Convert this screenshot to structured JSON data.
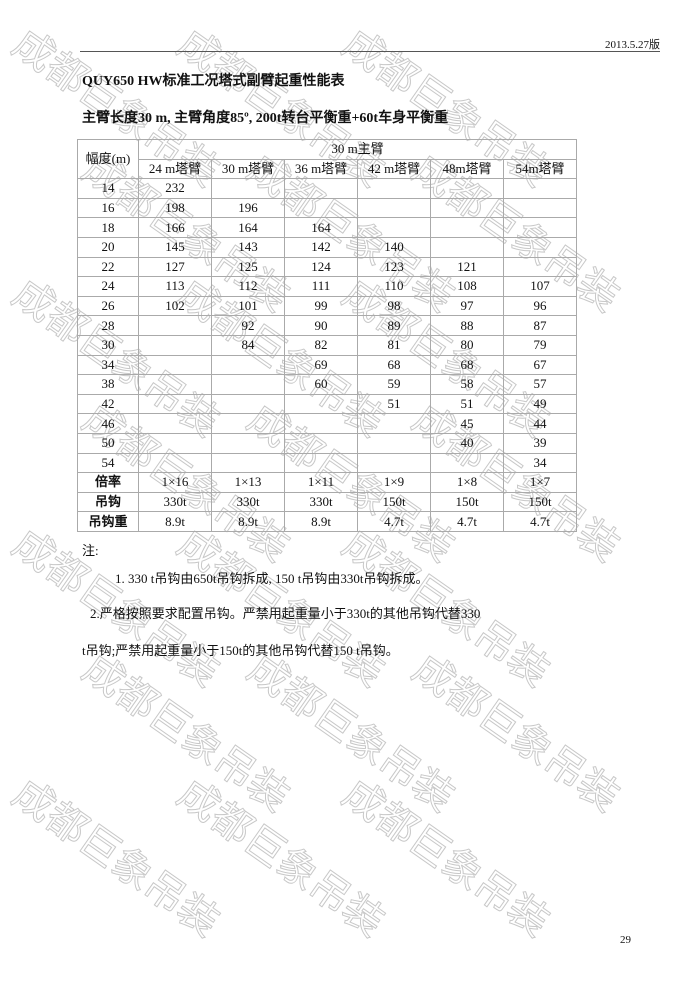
{
  "header": {
    "version_date": "2013.5.27版"
  },
  "title": "QUY650 HW标准工况塔式副臂起重性能表",
  "subtitle": "主臂长度30 m, 主臂角度85º, 200t转台平衡重+60t车身平衡重",
  "table": {
    "row_header": "幅度(m)",
    "group_header": "30 m主臂",
    "columns": [
      "24 m塔臂",
      "30 m塔臂",
      "36 m塔臂",
      "42 m塔臂",
      "48m塔臂",
      "54m塔臂"
    ],
    "rows": [
      {
        "radius": "14",
        "values": [
          "232",
          "",
          "",
          "",
          "",
          ""
        ]
      },
      {
        "radius": "16",
        "values": [
          "198",
          "196",
          "",
          "",
          "",
          ""
        ]
      },
      {
        "radius": "18",
        "values": [
          "166",
          "164",
          "164",
          "",
          "",
          ""
        ]
      },
      {
        "radius": "20",
        "values": [
          "145",
          "143",
          "142",
          "140",
          "",
          ""
        ]
      },
      {
        "radius": "22",
        "values": [
          "127",
          "125",
          "124",
          "123",
          "121",
          ""
        ]
      },
      {
        "radius": "24",
        "values": [
          "113",
          "112",
          "111",
          "110",
          "108",
          "107"
        ]
      },
      {
        "radius": "26",
        "values": [
          "102",
          "101",
          "99",
          "98",
          "97",
          "96"
        ]
      },
      {
        "radius": "28",
        "values": [
          "",
          "92",
          "90",
          "89",
          "88",
          "87"
        ]
      },
      {
        "radius": "30",
        "values": [
          "",
          "84",
          "82",
          "81",
          "80",
          "79"
        ]
      },
      {
        "radius": "34",
        "values": [
          "",
          "",
          "69",
          "68",
          "68",
          "67"
        ]
      },
      {
        "radius": "38",
        "values": [
          "",
          "",
          "60",
          "59",
          "58",
          "57"
        ]
      },
      {
        "radius": "42",
        "values": [
          "",
          "",
          "",
          "51",
          "51",
          "49"
        ]
      },
      {
        "radius": "46",
        "values": [
          "",
          "",
          "",
          "",
          "45",
          "44"
        ]
      },
      {
        "radius": "50",
        "values": [
          "",
          "",
          "",
          "",
          "40",
          "39"
        ]
      },
      {
        "radius": "54",
        "values": [
          "",
          "",
          "",
          "",
          "",
          "34"
        ]
      }
    ],
    "footer_rows": [
      {
        "label": "倍率",
        "values": [
          "1×16",
          "1×13",
          "1×11",
          "1×9",
          "1×8",
          "1×7"
        ]
      },
      {
        "label": "吊钩",
        "values": [
          "330t",
          "330t",
          "330t",
          "150t",
          "150t",
          "150t"
        ]
      },
      {
        "label": "吊钩重",
        "values": [
          "8.9t",
          "8.9t",
          "8.9t",
          "4.7t",
          "4.7t",
          "4.7t"
        ]
      }
    ]
  },
  "notes": {
    "label": "注:",
    "items": [
      "1. 330 t吊钩由650t吊钩拆成, 150 t吊钩由330t吊钩拆成。",
      "2.严格按照要求配置吊钩。严禁用起重量小于330t的其他吊钩代替330",
      "t吊钩;严禁用起重量小于150t的其他吊钩代替150 t吊钩。"
    ]
  },
  "page_number": "29",
  "watermark": {
    "text": "成都巨象吊装",
    "color": "#c8c8c8"
  }
}
